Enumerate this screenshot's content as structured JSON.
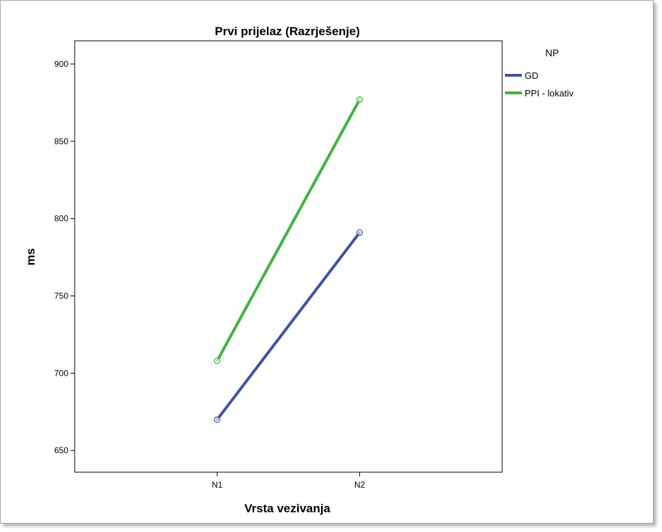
{
  "chart_data": {
    "type": "line",
    "title": "Prvi prijelaz (Razrješenje)",
    "xlabel": "Vrsta vezivanja",
    "ylabel": "ms",
    "categories": [
      "N1",
      "N2"
    ],
    "ylim": [
      636,
      915
    ],
    "y_ticks": [
      650,
      700,
      750,
      800,
      850,
      900
    ],
    "grid": false,
    "legend": {
      "title": "NP",
      "position": "right"
    },
    "series": [
      {
        "name": "GD",
        "color": "#3f53a6",
        "values": [
          670,
          791
        ]
      },
      {
        "name": "PPI - lokativ",
        "color": "#3db53d",
        "values": [
          708,
          877
        ]
      }
    ]
  }
}
